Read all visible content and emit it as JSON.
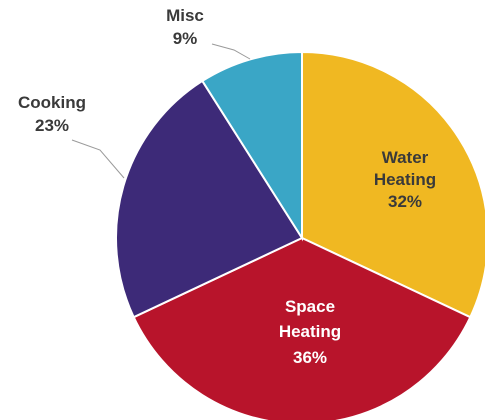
{
  "chart_data": {
    "type": "pie",
    "title": "",
    "start_angle_deg": 0,
    "direction": "clockwise",
    "slices": [
      {
        "label": "Water Heating",
        "value": 32,
        "value_text": "32%",
        "color": "#f0b822",
        "label_position": "inside",
        "label_color": "#3a3a3a"
      },
      {
        "label": "Space Heating",
        "value": 36,
        "value_text": "36%",
        "color": "#b8142b",
        "label_position": "inside",
        "label_color": "#ffffff"
      },
      {
        "label": "Cooking",
        "value": 23,
        "value_text": "23%",
        "color": "#3d2a78",
        "label_position": "outside",
        "label_color": "#3a3a3a"
      },
      {
        "label": "Misc",
        "value": 9,
        "value_text": "9%",
        "color": "#3aa6c6",
        "label_position": "outside",
        "label_color": "#3a3a3a"
      }
    ]
  }
}
